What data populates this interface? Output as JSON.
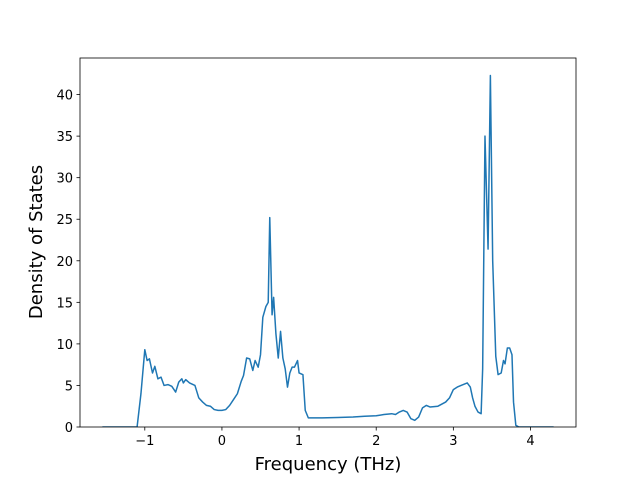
{
  "chart_data": {
    "type": "line",
    "x_label": "Frequency (THz)",
    "y_label": "Density of States",
    "color": "#1f77b4",
    "x": [
      -1.55,
      -1.1,
      -1.05,
      -1.0,
      -0.97,
      -0.94,
      -0.9,
      -0.87,
      -0.83,
      -0.79,
      -0.75,
      -0.7,
      -0.65,
      -0.6,
      -0.56,
      -0.52,
      -0.5,
      -0.47,
      -0.42,
      -0.35,
      -0.3,
      -0.25,
      -0.2,
      -0.15,
      -0.1,
      -0.05,
      0.0,
      0.05,
      0.1,
      0.15,
      0.2,
      0.25,
      0.28,
      0.32,
      0.36,
      0.4,
      0.43,
      0.47,
      0.5,
      0.53,
      0.57,
      0.6,
      0.62,
      0.65,
      0.67,
      0.7,
      0.73,
      0.76,
      0.79,
      0.82,
      0.85,
      0.88,
      0.91,
      0.94,
      0.98,
      1.0,
      1.05,
      1.08,
      1.12,
      1.3,
      1.5,
      1.7,
      1.85,
      2.0,
      2.1,
      2.2,
      2.25,
      2.3,
      2.35,
      2.4,
      2.45,
      2.5,
      2.55,
      2.6,
      2.65,
      2.7,
      2.8,
      2.9,
      2.95,
      3.0,
      3.05,
      3.1,
      3.18,
      3.22,
      3.25,
      3.28,
      3.32,
      3.36,
      3.38,
      3.41,
      3.45,
      3.48,
      3.51,
      3.55,
      3.58,
      3.62,
      3.65,
      3.67,
      3.7,
      3.73,
      3.76,
      3.78,
      3.81,
      3.85,
      4.3
    ],
    "values": [
      0,
      0,
      4,
      9.3,
      8,
      8.2,
      6.5,
      7.3,
      5.8,
      6.0,
      5.0,
      5.1,
      4.9,
      4.2,
      5.4,
      5.8,
      5.3,
      5.7,
      5.3,
      5.0,
      3.5,
      3.0,
      2.6,
      2.5,
      2.1,
      2.0,
      2.0,
      2.1,
      2.6,
      3.3,
      4.0,
      5.5,
      6.2,
      8.3,
      8.2,
      6.8,
      8.0,
      7.2,
      8.7,
      13.2,
      14.5,
      15.0,
      25.2,
      13.5,
      15.6,
      11.2,
      8.3,
      11.5,
      8.3,
      7.0,
      4.8,
      6.5,
      7.2,
      7.2,
      8.0,
      6.5,
      6.3,
      2.0,
      1.1,
      1.1,
      1.15,
      1.2,
      1.3,
      1.35,
      1.5,
      1.6,
      1.5,
      1.8,
      2.0,
      1.8,
      1.0,
      0.8,
      1.2,
      2.3,
      2.6,
      2.4,
      2.5,
      3.0,
      3.5,
      4.5,
      4.8,
      5.0,
      5.3,
      4.8,
      3.5,
      2.5,
      1.8,
      1.6,
      7.0,
      35.0,
      21.4,
      42.3,
      20,
      8.5,
      6.3,
      6.5,
      8.0,
      7.6,
      9.5,
      9.5,
      8.7,
      3.0,
      0.2,
      0,
      0
    ],
    "xlim": [
      -1.84,
      4.59
    ],
    "ylim": [
      0,
      44.4
    ],
    "xticks": [
      {
        "value": -1,
        "label": "−1"
      },
      0,
      1,
      2,
      3,
      4
    ],
    "yticks": [
      0,
      5,
      10,
      15,
      20,
      25,
      30,
      35,
      40
    ]
  }
}
